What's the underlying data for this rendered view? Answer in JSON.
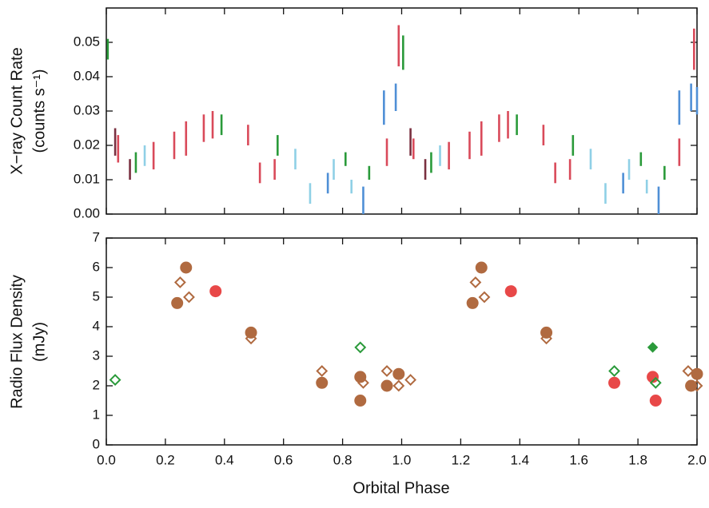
{
  "chart_data": [
    {
      "type": "errorbar",
      "ylabel": [
        "X−ray Count Rate",
        "(counts s⁻¹)"
      ],
      "xlim": [
        0,
        2
      ],
      "ylim": [
        0,
        0.06
      ],
      "xticks": [
        0,
        0.2,
        0.4,
        0.6,
        0.8,
        1,
        1.2,
        1.4,
        1.6,
        1.8,
        2
      ],
      "yticks": [
        {
          "value": 0,
          "label": "0.00"
        },
        {
          "value": 0.01,
          "label": "0.01"
        },
        {
          "value": 0.02,
          "label": "0.02"
        },
        {
          "value": 0.03,
          "label": "0.03"
        },
        {
          "value": 0.04,
          "label": "0.04"
        },
        {
          "value": 0.05,
          "label": "0.05"
        }
      ],
      "series": [
        {
          "color": "#d94a5a",
          "x": [
            0.04,
            0.16,
            0.23,
            0.27,
            0.33,
            0.36,
            0.48,
            0.52,
            0.57,
            0.95,
            0.99,
            1.04,
            1.16,
            1.23,
            1.27,
            1.33,
            1.36,
            1.48,
            1.52,
            1.57,
            1.94,
            1.99
          ],
          "values": [
            0.019,
            0.017,
            0.02,
            0.022,
            0.025,
            0.026,
            0.023,
            0.012,
            0.013,
            0.018,
            0.049,
            0.019,
            0.017,
            0.02,
            0.022,
            0.025,
            0.026,
            0.023,
            0.012,
            0.013,
            0.018,
            0.048
          ],
          "errors": [
            0.004,
            0.004,
            0.004,
            0.005,
            0.004,
            0.004,
            0.003,
            0.003,
            0.003,
            0.004,
            0.006,
            0.003,
            0.004,
            0.004,
            0.005,
            0.004,
            0.004,
            0.003,
            0.003,
            0.003,
            0.004,
            0.006
          ]
        },
        {
          "color": "#2a9a3a",
          "x": [
            0.005,
            0.1,
            0.39,
            0.58,
            0.81,
            0.89,
            1.005,
            1.1,
            1.39,
            1.58,
            1.81,
            1.89
          ],
          "values": [
            0.048,
            0.015,
            0.026,
            0.02,
            0.016,
            0.012,
            0.047,
            0.015,
            0.026,
            0.02,
            0.016,
            0.012
          ],
          "errors": [
            0.003,
            0.003,
            0.003,
            0.003,
            0.002,
            0.002,
            0.005,
            0.003,
            0.003,
            0.003,
            0.002,
            0.002
          ]
        },
        {
          "color": "#4f8fd6",
          "x": [
            0.75,
            0.87,
            0.94,
            0.98,
            1.75,
            1.87,
            1.94,
            1.98,
            2.0
          ],
          "values": [
            0.009,
            0.004,
            0.031,
            0.034,
            0.009,
            0.004,
            0.031,
            0.034,
            0.033
          ],
          "errors": [
            0.003,
            0.004,
            0.005,
            0.004,
            0.003,
            0.004,
            0.005,
            0.004,
            0.004
          ]
        },
        {
          "color": "#8fd0e6",
          "x": [
            0.13,
            0.64,
            0.69,
            0.77,
            0.83,
            1.13,
            1.64,
            1.69,
            1.77,
            1.83
          ],
          "values": [
            0.017,
            0.016,
            0.006,
            0.013,
            0.008,
            0.017,
            0.016,
            0.006,
            0.013,
            0.008
          ],
          "errors": [
            0.003,
            0.003,
            0.003,
            0.003,
            0.002,
            0.003,
            0.003,
            0.003,
            0.003,
            0.002
          ]
        },
        {
          "color": "#7a3040",
          "x": [
            0.03,
            0.08,
            1.03,
            1.08
          ],
          "values": [
            0.021,
            0.013,
            0.021,
            0.013
          ],
          "errors": [
            0.004,
            0.003,
            0.004,
            0.003
          ]
        }
      ]
    },
    {
      "type": "scatter",
      "xlabel": "Orbital Phase",
      "ylabel": [
        "Radio Flux Density",
        "(mJy)"
      ],
      "xlim": [
        0,
        2
      ],
      "ylim": [
        0,
        7
      ],
      "xticks": [
        {
          "value": 0,
          "label": "0.0"
        },
        {
          "value": 0.2,
          "label": "0.2"
        },
        {
          "value": 0.4,
          "label": "0.4"
        },
        {
          "value": 0.6,
          "label": "0.6"
        },
        {
          "value": 0.8,
          "label": "0.8"
        },
        {
          "value": 1,
          "label": "1.0"
        },
        {
          "value": 1.2,
          "label": "1.2"
        },
        {
          "value": 1.4,
          "label": "1.4"
        },
        {
          "value": 1.6,
          "label": "1.6"
        },
        {
          "value": 1.8,
          "label": "1.8"
        },
        {
          "value": 2,
          "label": "2.0"
        }
      ],
      "yticks": [
        0,
        1,
        2,
        3,
        4,
        5,
        6,
        7
      ],
      "series": [
        {
          "color": "#b06a40",
          "marker": "circle",
          "filled": true,
          "x": [
            0.24,
            0.27,
            0.49,
            0.73,
            0.86,
            0.86,
            0.95,
            0.99,
            1.24,
            1.27,
            1.49,
            1.98,
            2.0
          ],
          "values": [
            4.8,
            6.0,
            3.8,
            2.1,
            2.3,
            1.5,
            2.0,
            2.4,
            4.8,
            6.0,
            3.8,
            2.0,
            2.4
          ]
        },
        {
          "color": "#b06a40",
          "marker": "diamond",
          "filled": false,
          "x": [
            0.25,
            0.28,
            0.49,
            0.73,
            0.87,
            0.95,
            0.99,
            1.03,
            1.25,
            1.28,
            1.49,
            1.97,
            2.0
          ],
          "values": [
            5.5,
            5.0,
            3.6,
            2.5,
            2.1,
            2.5,
            2.0,
            2.2,
            5.5,
            5.0,
            3.6,
            2.5,
            2.0
          ]
        },
        {
          "color": "#e84848",
          "marker": "circle",
          "filled": true,
          "x": [
            0.37,
            1.37,
            1.72,
            1.85,
            1.86
          ],
          "values": [
            5.2,
            5.2,
            2.1,
            2.3,
            1.5
          ]
        },
        {
          "color": "#2a9a3a",
          "marker": "diamond",
          "filled": false,
          "x": [
            0.03,
            0.86,
            1.72,
            1.86
          ],
          "values": [
            2.2,
            3.3,
            2.5,
            2.1
          ]
        },
        {
          "color": "#2a9a3a",
          "marker": "diamond",
          "filled": true,
          "x": [
            1.85
          ],
          "values": [
            3.3
          ]
        }
      ]
    }
  ]
}
